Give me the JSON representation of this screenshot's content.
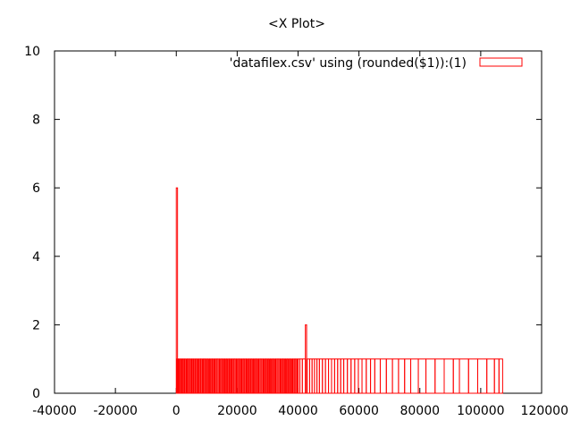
{
  "chart_data": {
    "type": "bar",
    "title": "<X Plot>",
    "xlabel": "",
    "ylabel": "",
    "xlim": [
      -40000,
      120000
    ],
    "ylim": [
      0,
      10
    ],
    "x_ticks": [
      -40000,
      -20000,
      0,
      20000,
      40000,
      60000,
      80000,
      100000,
      120000
    ],
    "x_tick_labels": [
      "-40000",
      "-20000",
      "0",
      "20000",
      "40000",
      "60000",
      "80000",
      "100000",
      "120000"
    ],
    "y_ticks": [
      0,
      2,
      4,
      6,
      8,
      10
    ],
    "y_tick_labels": [
      "0",
      "2",
      "4",
      "6",
      "8",
      "10"
    ],
    "grid": false,
    "legend_position": "top-right",
    "series": [
      {
        "name": "'datafilex.csv' using (rounded($1)):(1)",
        "color": "#ff0000",
        "style": "boxes (outline)",
        "notes": "Dense single-count boxes between ~0 and ~106000",
        "x": [
          0,
          200,
          600,
          1000,
          1600,
          2200,
          2800,
          3600,
          4200,
          5000,
          5600,
          6400,
          7200,
          8000,
          8800,
          9400,
          10200,
          11000,
          11800,
          12600,
          13400,
          14200,
          15000,
          15800,
          16600,
          17400,
          18200,
          19000,
          19800,
          20600,
          21400,
          22200,
          23000,
          23800,
          24600,
          25400,
          26200,
          27000,
          27800,
          28600,
          29400,
          30200,
          31000,
          31800,
          32600,
          33400,
          34200,
          35000,
          35800,
          36600,
          37400,
          38200,
          39000,
          39800,
          40600,
          41400,
          42400,
          43000,
          43800,
          44600,
          45400,
          46200,
          47000,
          48000,
          49000,
          50000,
          51000,
          52000,
          53000,
          54000,
          55000,
          56200,
          57400,
          58600,
          59800,
          61000,
          62400,
          63800,
          65200,
          67000,
          69000,
          71000,
          73000,
          75000,
          77000,
          79500,
          82000,
          85000,
          88000,
          91000,
          93000,
          96000,
          99000,
          102000,
          104500,
          106000
        ],
        "values": [
          6,
          1,
          1,
          1,
          1,
          1,
          1,
          1,
          1,
          1,
          1,
          1,
          1,
          1,
          1,
          1,
          1,
          1,
          1,
          1,
          1,
          1,
          1,
          1,
          1,
          1,
          1,
          1,
          1,
          1,
          1,
          1,
          1,
          1,
          1,
          1,
          1,
          1,
          1,
          1,
          1,
          1,
          1,
          1,
          1,
          1,
          1,
          1,
          1,
          1,
          1,
          1,
          1,
          1,
          1,
          1,
          2,
          1,
          1,
          1,
          1,
          1,
          1,
          1,
          1,
          1,
          1,
          1,
          1,
          1,
          1,
          1,
          1,
          1,
          1,
          1,
          1,
          1,
          1,
          1,
          1,
          1,
          1,
          1,
          1,
          1,
          1,
          1,
          1,
          1,
          1,
          1,
          1,
          1,
          1,
          1
        ]
      }
    ]
  }
}
